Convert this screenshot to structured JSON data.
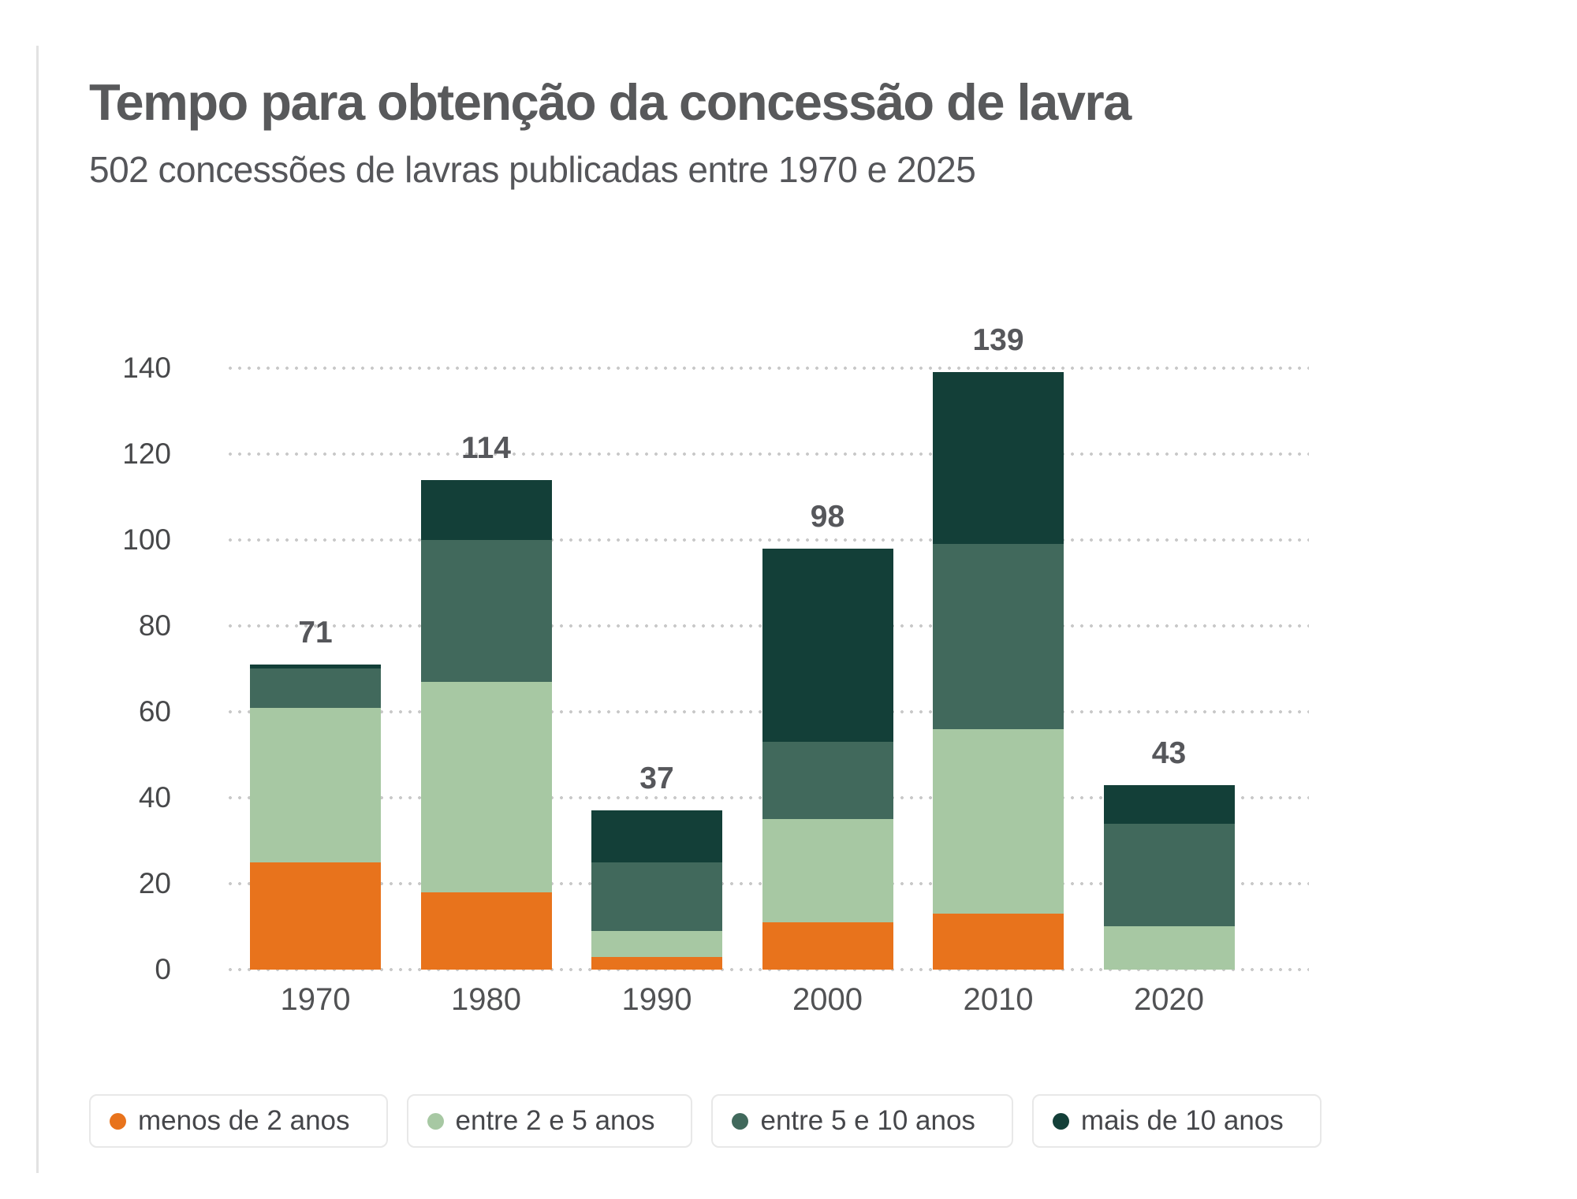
{
  "title": "Tempo para obtenção da concessão de lavra",
  "subtitle": "502 concessões de lavras publicadas entre 1970 e 2025",
  "colors": {
    "menos_de_2_anos": "#E8731C",
    "entre_2_e_5_anos": "#A7C8A3",
    "entre_5_e_10_anos": "#41695C",
    "mais_de_10_anos": "#133F38",
    "grid_dots": "#c9c9c9",
    "title_text": "#58595b",
    "axis_text": "#47484a"
  },
  "chart_data": {
    "type": "bar",
    "stacked": true,
    "title": "Tempo para obtenção da concessão de lavra",
    "subtitle": "502 concessões de lavras publicadas entre 1970 e 2025",
    "categories": [
      "1970",
      "1980",
      "1990",
      "2000",
      "2010",
      "2020"
    ],
    "series": [
      {
        "name": "menos de 2 anos",
        "color": "#E8731C",
        "values": [
          25,
          18,
          3,
          11,
          13,
          0
        ]
      },
      {
        "name": "entre 2 e 5 anos",
        "color": "#A7C8A3",
        "values": [
          36,
          49,
          6,
          24,
          43,
          10
        ]
      },
      {
        "name": "entre 5 e 10 anos",
        "color": "#41695C",
        "values": [
          9,
          33,
          16,
          18,
          43,
          24
        ]
      },
      {
        "name": "mais de 10 anos",
        "color": "#133F38",
        "values": [
          1,
          14,
          12,
          45,
          40,
          9
        ]
      }
    ],
    "totals": [
      71,
      114,
      37,
      98,
      139,
      43
    ],
    "xlabel": "",
    "ylabel": "",
    "y_ticks": [
      0,
      20,
      40,
      60,
      80,
      100,
      120,
      140
    ],
    "ylim": [
      0,
      140
    ],
    "grid": "horizontal-dotted",
    "legend_position": "bottom"
  }
}
